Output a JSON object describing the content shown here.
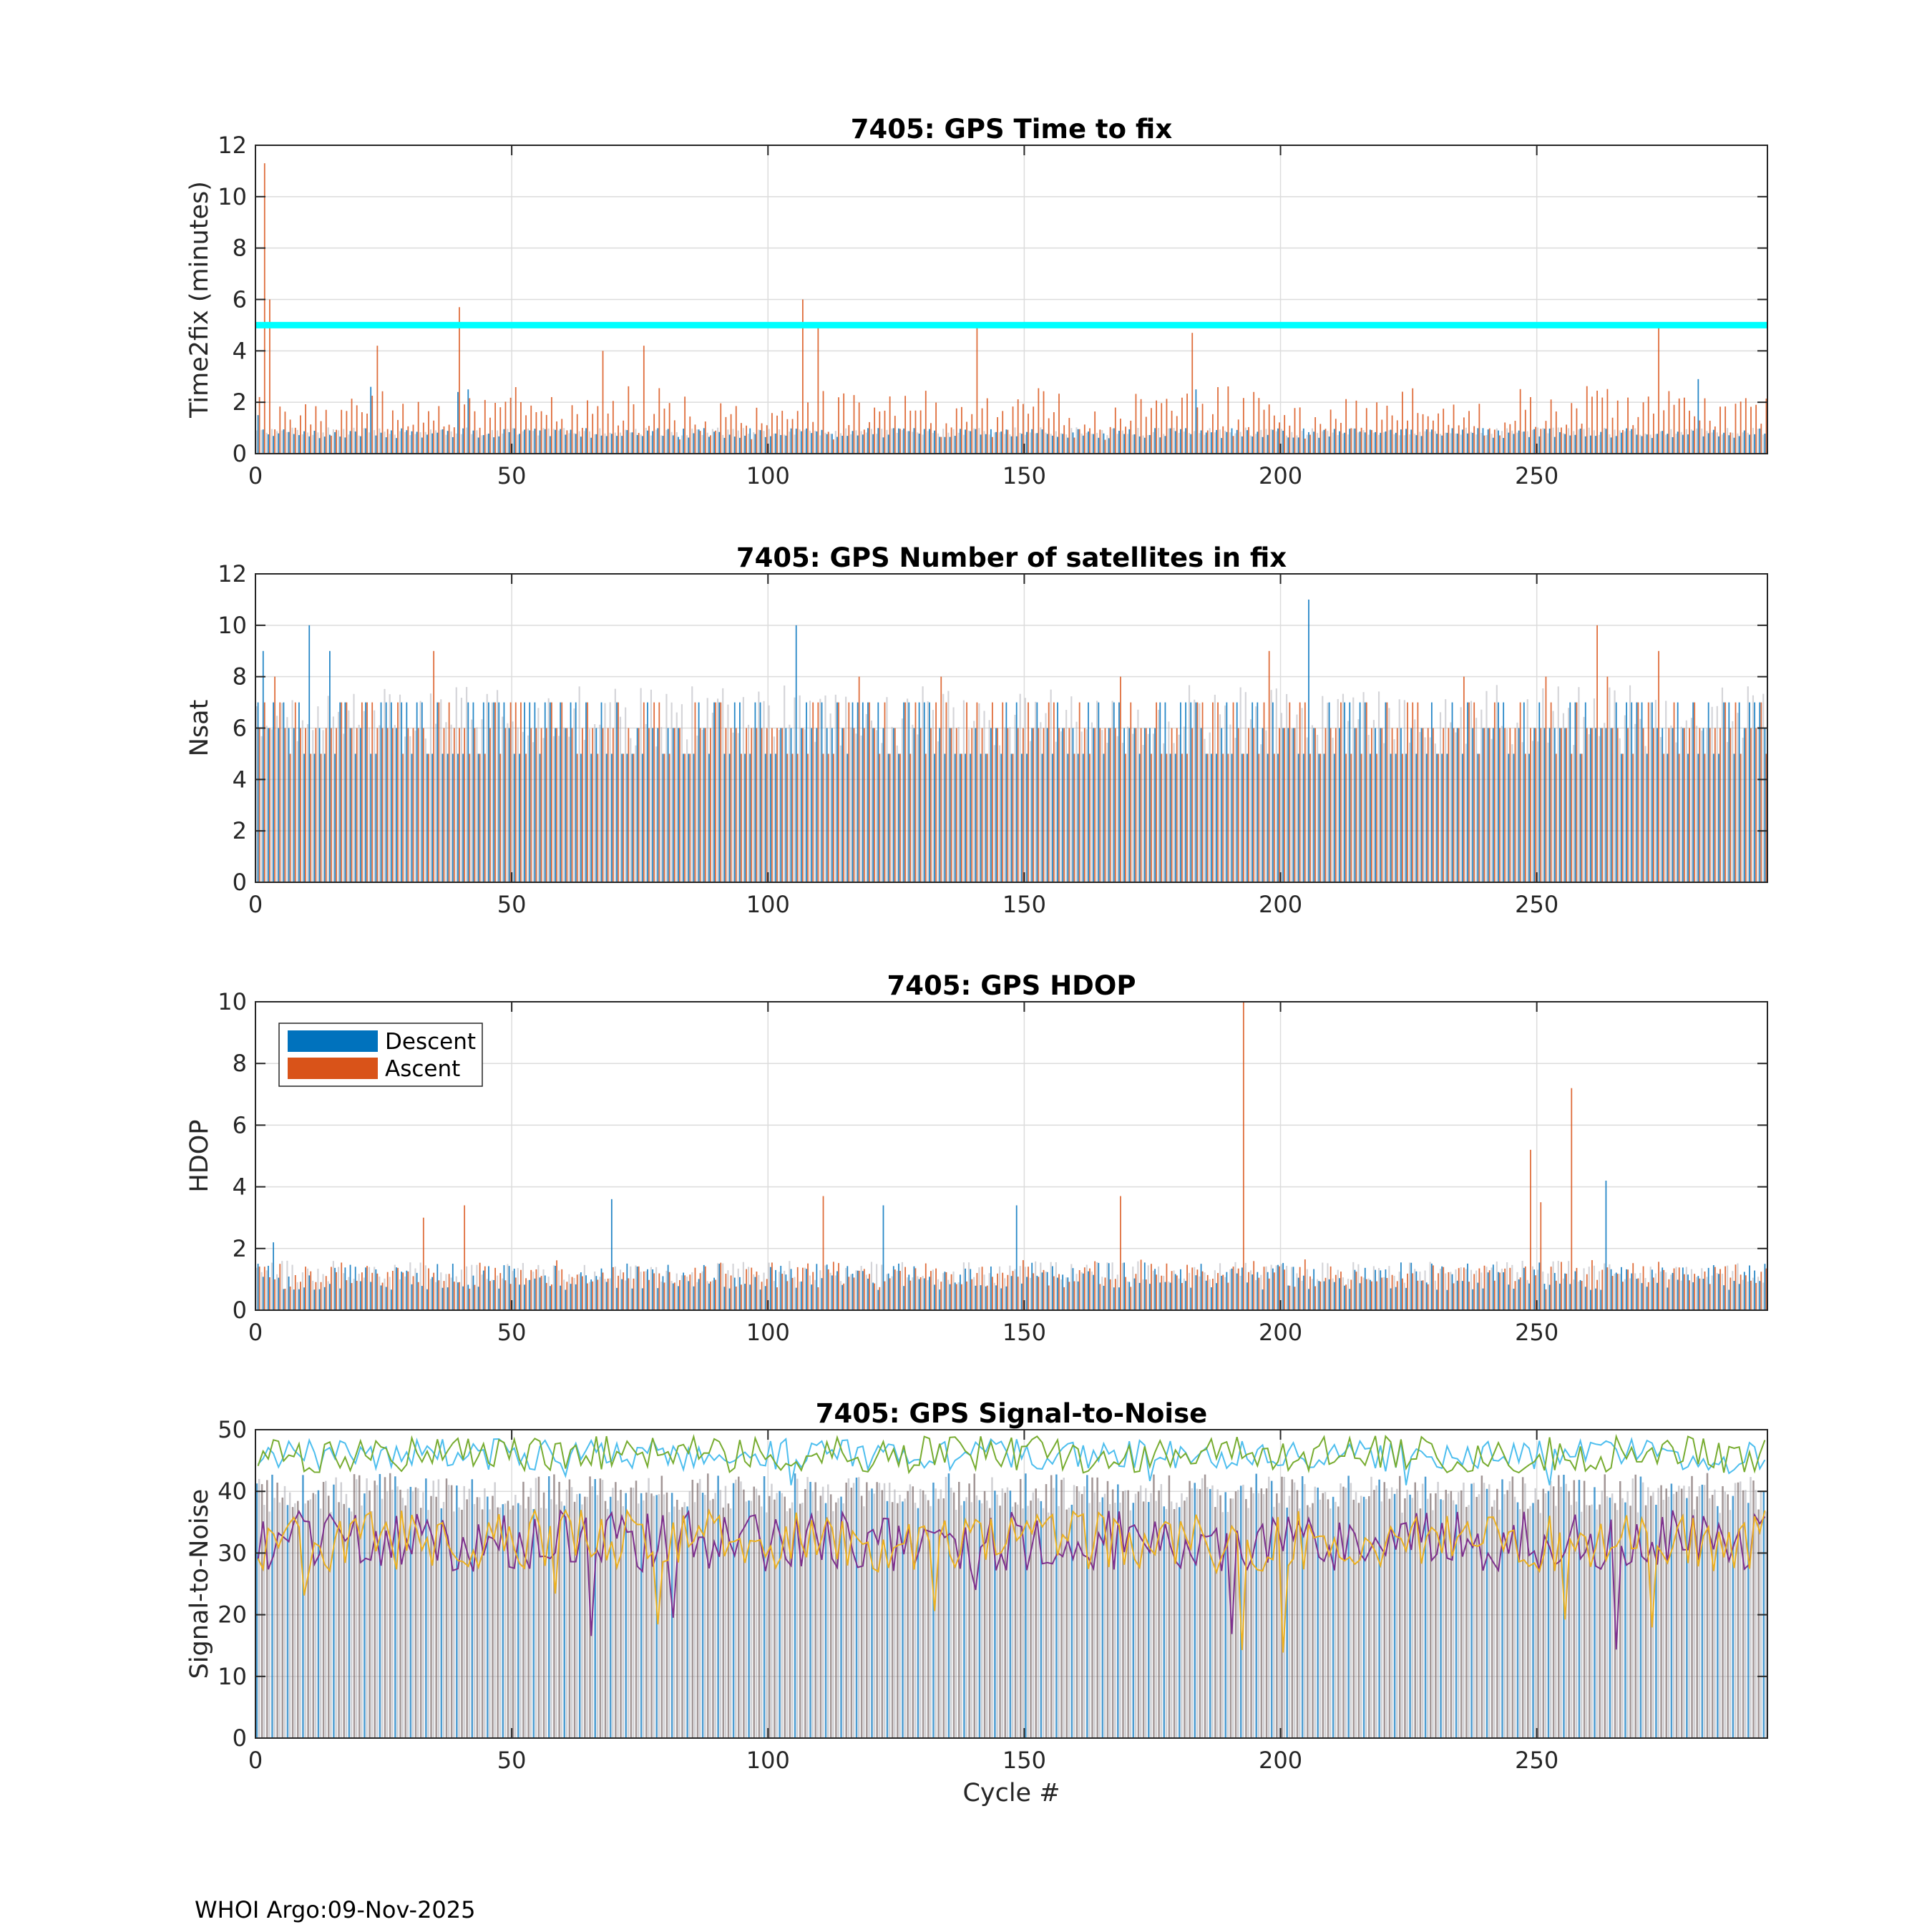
{
  "footer": {
    "text": "WHOI Argo:09-Nov-2025"
  },
  "colors": {
    "descent": "#0072BD",
    "ascent": "#D95319",
    "threshold": "#00FFFF",
    "gray": "#8c8c8c",
    "snr_lines": [
      "#4DBEEE",
      "#77AC30",
      "#7E2F8E",
      "#EDB120"
    ]
  },
  "chart_data": [
    {
      "id": "time2fix",
      "type": "bar",
      "title": "7405: GPS Time to fix",
      "xlabel": "",
      "ylabel": "Time2fix (minutes)",
      "xlim": [
        0,
        295
      ],
      "ylim": [
        0,
        12
      ],
      "xticks": [
        "0",
        "50",
        "100",
        "150",
        "200",
        "250"
      ],
      "xtick_values": [
        0,
        50,
        100,
        150,
        200,
        250
      ],
      "yticks": [
        "0",
        "2",
        "4",
        "6",
        "8",
        "10",
        "12"
      ],
      "ytick_values": [
        0,
        2,
        4,
        6,
        8,
        10,
        12
      ],
      "grid": true,
      "threshold": 5,
      "series": [
        {
          "name": "Descent",
          "typical": 0.8,
          "spread": 0.4,
          "peaks": [
            [
              0,
              1.5
            ],
            [
              22,
              2.6
            ],
            [
              39,
              2.4
            ],
            [
              41,
              2.5
            ],
            [
              183,
              2.5
            ],
            [
              281,
              2.9
            ]
          ]
        },
        {
          "name": "Ascent",
          "typical": 1.5,
          "spread": 2.2,
          "peaks": [
            [
              1,
              11.3
            ],
            [
              2,
              6.0
            ],
            [
              39,
              5.7
            ],
            [
              106,
              6.0
            ],
            [
              109,
              4.9
            ],
            [
              140,
              5.1
            ],
            [
              182,
              4.7
            ],
            [
              273,
              4.9
            ],
            [
              23,
              4.2
            ],
            [
              75,
              4.2
            ],
            [
              67,
              4.0
            ]
          ]
        }
      ]
    },
    {
      "id": "nsat",
      "type": "bar",
      "title": "7405: GPS Number of satellites in fix",
      "xlabel": "",
      "ylabel": "Nsat",
      "xlim": [
        0,
        295
      ],
      "ylim": [
        0,
        12
      ],
      "xticks": [
        "0",
        "50",
        "100",
        "150",
        "200",
        "250"
      ],
      "xtick_values": [
        0,
        50,
        100,
        150,
        200,
        250
      ],
      "yticks": [
        "0",
        "2",
        "4",
        "6",
        "8",
        "10",
        "12"
      ],
      "ytick_values": [
        0,
        2,
        4,
        6,
        8,
        10,
        12
      ],
      "grid": true,
      "series": [
        {
          "name": "Descent",
          "typical": 6,
          "spread": 3,
          "peaks": [
            [
              10,
              10
            ],
            [
              105,
              10
            ],
            [
              205,
              11
            ],
            [
              14,
              9
            ],
            [
              1,
              9
            ]
          ]
        },
        {
          "name": "Ascent",
          "typical": 6,
          "spread": 3,
          "peaks": [
            [
              261,
              10
            ],
            [
              34,
              9
            ],
            [
              197,
              9
            ],
            [
              273,
              9
            ]
          ]
        }
      ]
    },
    {
      "id": "hdop",
      "type": "bar",
      "title": "7405: GPS HDOP",
      "xlabel": "",
      "ylabel": "HDOP",
      "xlim": [
        0,
        295
      ],
      "ylim": [
        0,
        10
      ],
      "xticks": [
        "0",
        "50",
        "100",
        "150",
        "200",
        "250"
      ],
      "xtick_values": [
        0,
        50,
        100,
        150,
        200,
        250
      ],
      "yticks": [
        "0",
        "2",
        "4",
        "6",
        "8",
        "10"
      ],
      "ytick_values": [
        0,
        2,
        4,
        6,
        8,
        10
      ],
      "grid": true,
      "legend": {
        "position": "top-left",
        "entries": [
          "Descent",
          "Ascent"
        ]
      },
      "series": [
        {
          "name": "Descent",
          "typical": 1.1,
          "spread": 0.9,
          "peaks": [
            [
              69,
              3.6
            ],
            [
              263,
              4.2
            ],
            [
              148,
              3.4
            ],
            [
              122,
              3.4
            ],
            [
              3,
              2.2
            ]
          ]
        },
        {
          "name": "Ascent",
          "typical": 1.1,
          "spread": 1.0,
          "peaks": [
            [
              192,
              10.0
            ],
            [
              256,
              7.2
            ],
            [
              248,
              5.2
            ],
            [
              168,
              3.7
            ],
            [
              110,
              3.7
            ],
            [
              40,
              3.4
            ],
            [
              32,
              3.0
            ],
            [
              250,
              3.5
            ]
          ]
        }
      ]
    },
    {
      "id": "snr",
      "type": "bar",
      "title": "7405: GPS Signal-to-Noise",
      "xlabel": "Cycle #",
      "ylabel": "Signal-to-Noise",
      "xlim": [
        0,
        295
      ],
      "ylim": [
        0,
        50
      ],
      "xticks": [
        "0",
        "50",
        "100",
        "150",
        "200",
        "250"
      ],
      "xtick_values": [
        0,
        50,
        100,
        150,
        200,
        250
      ],
      "yticks": [
        "0",
        "10",
        "20",
        "30",
        "40",
        "50"
      ],
      "ytick_values": [
        0,
        10,
        20,
        30,
        40,
        50
      ],
      "grid": true,
      "bars_typical": 40,
      "bars_spread": 6,
      "lines": [
        {
          "name": "snr1",
          "mean": 46,
          "amp": 2.5,
          "min": 41
        },
        {
          "name": "snr2",
          "mean": 46,
          "amp": 3,
          "min": 41
        },
        {
          "name": "snr3",
          "mean": 32,
          "amp": 5,
          "min": 12
        },
        {
          "name": "snr4",
          "mean": 32,
          "amp": 5,
          "min": 12
        }
      ]
    }
  ]
}
